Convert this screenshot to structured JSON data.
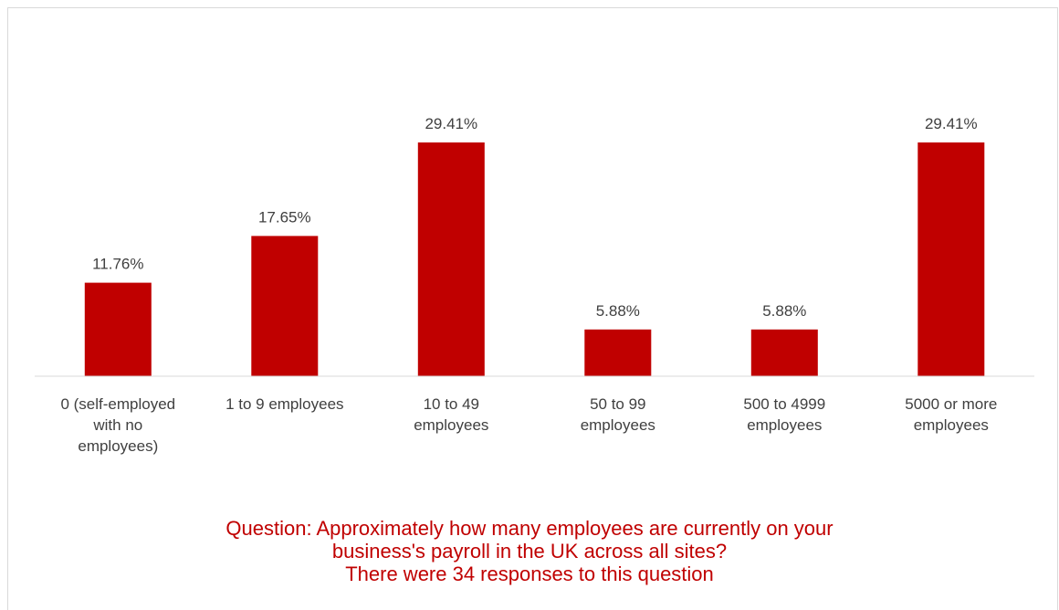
{
  "chart_data": {
    "type": "bar",
    "categories": [
      [
        "0 (self-employed",
        "with no",
        "employees)"
      ],
      [
        "1 to 9 employees"
      ],
      [
        "10 to 49",
        "employees"
      ],
      [
        "50 to 99",
        "employees"
      ],
      [
        "500 to 4999",
        "employees"
      ],
      [
        "5000 or more",
        "employees"
      ]
    ],
    "values": [
      11.76,
      17.65,
      29.41,
      5.88,
      5.88,
      29.41
    ],
    "value_labels": [
      "11.76%",
      "17.65%",
      "29.41%",
      "5.88%",
      "5.88%",
      "29.41%"
    ],
    "ylim": [
      0,
      29.41
    ],
    "bar_color": "#c00000",
    "axis_color": "#d9d9d9",
    "grid": false,
    "legend": "none"
  },
  "caption": {
    "line1": "Question: Approximately how many employees are currently on your",
    "line2": "business's payroll in the UK across all sites?",
    "line3": "There were 34 responses to this question"
  }
}
